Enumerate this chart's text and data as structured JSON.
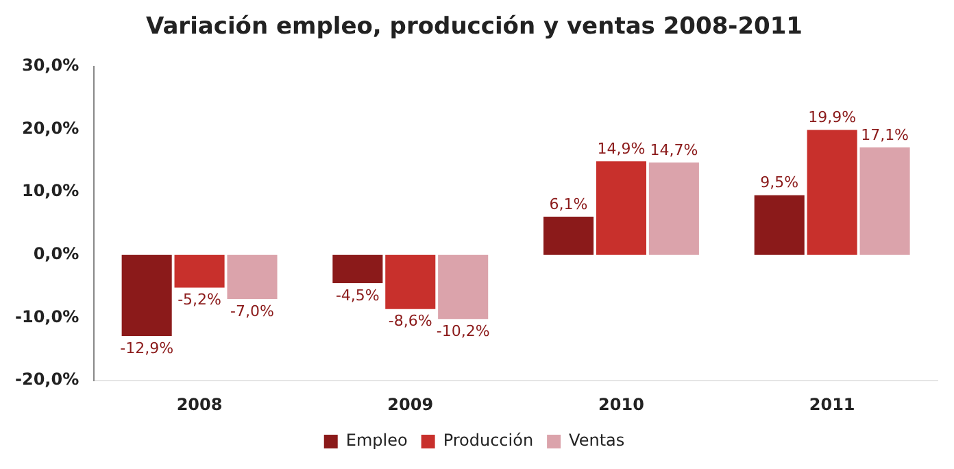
{
  "chart_data": {
    "type": "bar",
    "title": "Variación empleo, producción y ventas 2008-2011",
    "categories": [
      "2008",
      "2009",
      "2010",
      "2011"
    ],
    "series": [
      {
        "name": "Empleo",
        "color": "#8b1a1a",
        "values": [
          -12.9,
          -4.5,
          6.1,
          9.5
        ],
        "value_labels": [
          "-12,9%",
          "-4,5%",
          "6,1%",
          "9,5%"
        ]
      },
      {
        "name": "Producción",
        "color": "#c8302c",
        "values": [
          -5.2,
          -8.6,
          14.9,
          19.9
        ],
        "value_labels": [
          "-5,2%",
          "-8,6%",
          "14,9%",
          "19,9%"
        ]
      },
      {
        "name": "Ventas",
        "color": "#dba3ab",
        "values": [
          -7.0,
          -10.2,
          14.7,
          17.1
        ],
        "value_labels": [
          "-7,0%",
          "-10,2%",
          "14,7%",
          "17,1%"
        ]
      }
    ],
    "ylim": [
      -20,
      30
    ],
    "yticks": [
      {
        "value": -20,
        "label": "-20,0%"
      },
      {
        "value": -10,
        "label": "-10,0%"
      },
      {
        "value": 0,
        "label": "0,0%"
      },
      {
        "value": 10,
        "label": "10,0%"
      },
      {
        "value": 20,
        "label": "20,0%"
      },
      {
        "value": 30,
        "label": "30,0%"
      }
    ],
    "grid": false,
    "legend": "bottom"
  }
}
